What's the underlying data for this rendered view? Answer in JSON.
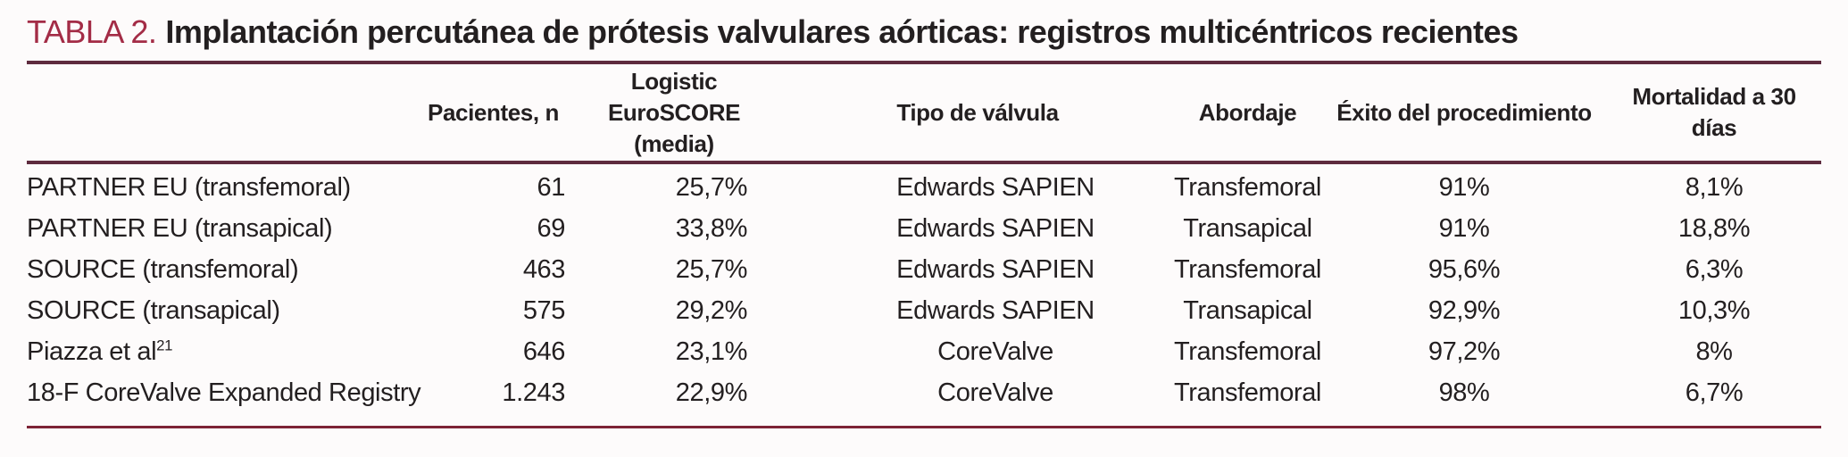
{
  "title": {
    "label": "TABLA 2.",
    "text": "Implantación percutánea de prótesis valvulares aórticas: registros multicéntricos recientes"
  },
  "table": {
    "headers": {
      "study": "",
      "patients": "Pacientes, n",
      "euroscore_line1": "Logistic EuroSCORE",
      "euroscore_line2": "(media)",
      "valve": "Tipo de válvula",
      "approach": "Abordaje",
      "success": "Éxito del procedimiento",
      "mortality": "Mortalidad a 30 días"
    },
    "rows": [
      {
        "study": "PARTNER EU (transfemoral)",
        "sup": "",
        "patients": "61",
        "euroscore": "25,7%",
        "valve": "Edwards SAPIEN",
        "approach": "Transfemoral",
        "success": "91%",
        "mortality": "8,1%"
      },
      {
        "study": "PARTNER EU (transapical)",
        "sup": "",
        "patients": "69",
        "euroscore": "33,8%",
        "valve": "Edwards SAPIEN",
        "approach": "Transapical",
        "success": "91%",
        "mortality": "18,8%"
      },
      {
        "study": "SOURCE (transfemoral)",
        "sup": "",
        "patients": "463",
        "euroscore": "25,7%",
        "valve": "Edwards SAPIEN",
        "approach": "Transfemoral",
        "success": "95,6%",
        "mortality": "6,3%"
      },
      {
        "study": "SOURCE (transapical)",
        "sup": "",
        "patients": "575",
        "euroscore": "29,2%",
        "valve": "Edwards SAPIEN",
        "approach": "Transapical",
        "success": "92,9%",
        "mortality": "10,3%"
      },
      {
        "study": "Piazza et al",
        "sup": "21",
        "patients": "646",
        "euroscore": "23,1%",
        "valve": "CoreValve",
        "approach": "Transfemoral",
        "success": "97,2%",
        "mortality": "8%"
      },
      {
        "study": "18-F CoreValve Expanded Registry",
        "sup": "",
        "patients": "1.243",
        "euroscore": "22,9%",
        "valve": "CoreValve",
        "approach": "Transfemoral",
        "success": "98%",
        "mortality": "6,7%"
      }
    ]
  },
  "colors": {
    "accent": "#a32c46",
    "rule": "#5e2b3e",
    "rule_bottom": "#7d2336",
    "text": "#231f20",
    "background": "#fdfbfb"
  }
}
